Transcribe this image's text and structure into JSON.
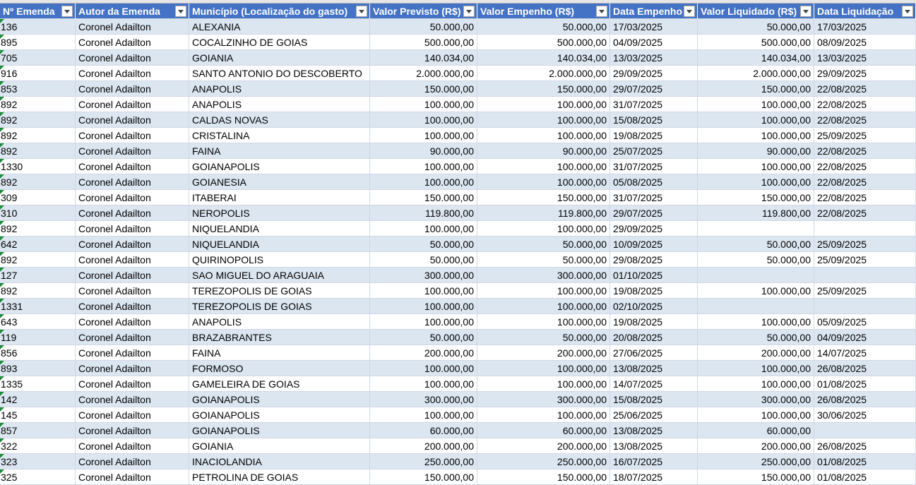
{
  "table": {
    "headers": [
      "Nº Emenda",
      "Autor da Emenda",
      "Município (Localização do gasto)",
      "Valor Previsto (R$)",
      "Valor Empenho (R$)",
      "Data Empenho",
      "Valor Liquidado (R$)",
      "Data Liquidação"
    ],
    "rows": [
      [
        "136",
        "Coronel Adailton",
        "ALEXANIA",
        "50.000,00",
        "50.000,00",
        "17/03/2025",
        "50.000,00",
        "17/03/2025"
      ],
      [
        "895",
        "Coronel Adailton",
        "COCALZINHO DE GOIAS",
        "500.000,00",
        "500.000,00",
        "04/09/2025",
        "500.000,00",
        "08/09/2025"
      ],
      [
        "705",
        "Coronel Adailton",
        "GOIANIA",
        "140.034,00",
        "140.034,00",
        "13/03/2025",
        "140.034,00",
        "13/03/2025"
      ],
      [
        "916",
        "Coronel Adailton",
        "SANTO ANTONIO DO DESCOBERTO",
        "2.000.000,00",
        "2.000.000,00",
        "29/09/2025",
        "2.000.000,00",
        "29/09/2025"
      ],
      [
        "853",
        "Coronel Adailton",
        "ANAPOLIS",
        "150.000,00",
        "150.000,00",
        "29/07/2025",
        "150.000,00",
        "22/08/2025"
      ],
      [
        "892",
        "Coronel Adailton",
        "ANAPOLIS",
        "100.000,00",
        "100.000,00",
        "31/07/2025",
        "100.000,00",
        "22/08/2025"
      ],
      [
        "892",
        "Coronel Adailton",
        "CALDAS NOVAS",
        "100.000,00",
        "100.000,00",
        "15/08/2025",
        "100.000,00",
        "22/08/2025"
      ],
      [
        "892",
        "Coronel Adailton",
        "CRISTALINA",
        "100.000,00",
        "100.000,00",
        "19/08/2025",
        "100.000,00",
        "25/09/2025"
      ],
      [
        "892",
        "Coronel Adailton",
        "FAINA",
        "90.000,00",
        "90.000,00",
        "25/07/2025",
        "90.000,00",
        "22/08/2025"
      ],
      [
        "1330",
        "Coronel Adailton",
        "GOIANAPOLIS",
        "100.000,00",
        "100.000,00",
        "31/07/2025",
        "100.000,00",
        "22/08/2025"
      ],
      [
        "892",
        "Coronel Adailton",
        "GOIANESIA",
        "100.000,00",
        "100.000,00",
        "05/08/2025",
        "100.000,00",
        "22/08/2025"
      ],
      [
        "309",
        "Coronel Adailton",
        "ITABERAI",
        "150.000,00",
        "150.000,00",
        "31/07/2025",
        "150.000,00",
        "22/08/2025"
      ],
      [
        "310",
        "Coronel Adailton",
        "NEROPOLIS",
        "119.800,00",
        "119.800,00",
        "29/07/2025",
        "119.800,00",
        "22/08/2025"
      ],
      [
        "892",
        "Coronel Adailton",
        "NIQUELANDIA",
        "100.000,00",
        "100.000,00",
        "29/09/2025",
        null,
        null
      ],
      [
        "642",
        "Coronel Adailton",
        "NIQUELANDIA",
        "50.000,00",
        "50.000,00",
        "10/09/2025",
        "50.000,00",
        "25/09/2025"
      ],
      [
        "892",
        "Coronel Adailton",
        "QUIRINOPOLIS",
        "50.000,00",
        "50.000,00",
        "29/08/2025",
        "50.000,00",
        "25/09/2025"
      ],
      [
        "127",
        "Coronel Adailton",
        "SAO MIGUEL DO ARAGUAIA",
        "300.000,00",
        "300.000,00",
        "01/10/2025",
        null,
        null
      ],
      [
        "892",
        "Coronel Adailton",
        "TEREZOPOLIS DE GOIAS",
        "100.000,00",
        "100.000,00",
        "19/08/2025",
        "100.000,00",
        "25/09/2025"
      ],
      [
        "1331",
        "Coronel Adailton",
        "TEREZOPOLIS DE GOIAS",
        "100.000,00",
        "100.000,00",
        "02/10/2025",
        null,
        null
      ],
      [
        "643",
        "Coronel Adailton",
        "ANAPOLIS",
        "100.000,00",
        "100.000,00",
        "19/08/2025",
        "100.000,00",
        "05/09/2025"
      ],
      [
        "119",
        "Coronel Adailton",
        "BRAZABRANTES",
        "50.000,00",
        "50.000,00",
        "20/08/2025",
        "50.000,00",
        "04/09/2025"
      ],
      [
        "856",
        "Coronel Adailton",
        "FAINA",
        "200.000,00",
        "200.000,00",
        "27/06/2025",
        "200.000,00",
        "14/07/2025"
      ],
      [
        "893",
        "Coronel Adailton",
        "FORMOSO",
        "100.000,00",
        "100.000,00",
        "13/08/2025",
        "100.000,00",
        "26/08/2025"
      ],
      [
        "1335",
        "Coronel Adailton",
        "GAMELEIRA DE GOIAS",
        "100.000,00",
        "100.000,00",
        "14/07/2025",
        "100.000,00",
        "01/08/2025"
      ],
      [
        "142",
        "Coronel Adailton",
        "GOIANAPOLIS",
        "300.000,00",
        "300.000,00",
        "15/08/2025",
        "300.000,00",
        "26/08/2025"
      ],
      [
        "145",
        "Coronel Adailton",
        "GOIANAPOLIS",
        "100.000,00",
        "100.000,00",
        "25/06/2025",
        "100.000,00",
        "30/06/2025"
      ],
      [
        "857",
        "Coronel Adailton",
        "GOIANAPOLIS",
        "60.000,00",
        "60.000,00",
        "13/08/2025",
        "60.000,00",
        null
      ],
      [
        "322",
        "Coronel Adailton",
        "GOIANIA",
        "200.000,00",
        "200.000,00",
        "13/08/2025",
        "200.000,00",
        "26/08/2025"
      ],
      [
        "323",
        "Coronel Adailton",
        "INACIOLANDIA",
        "250.000,00",
        "250.000,00",
        "16/07/2025",
        "250.000,00",
        "01/08/2025"
      ],
      [
        "325",
        "Coronel Adailton",
        "PETROLINA DE GOIAS",
        "150.000,00",
        "150.000,00",
        "18/07/2025",
        "150.000,00",
        "01/08/2025"
      ]
    ]
  }
}
